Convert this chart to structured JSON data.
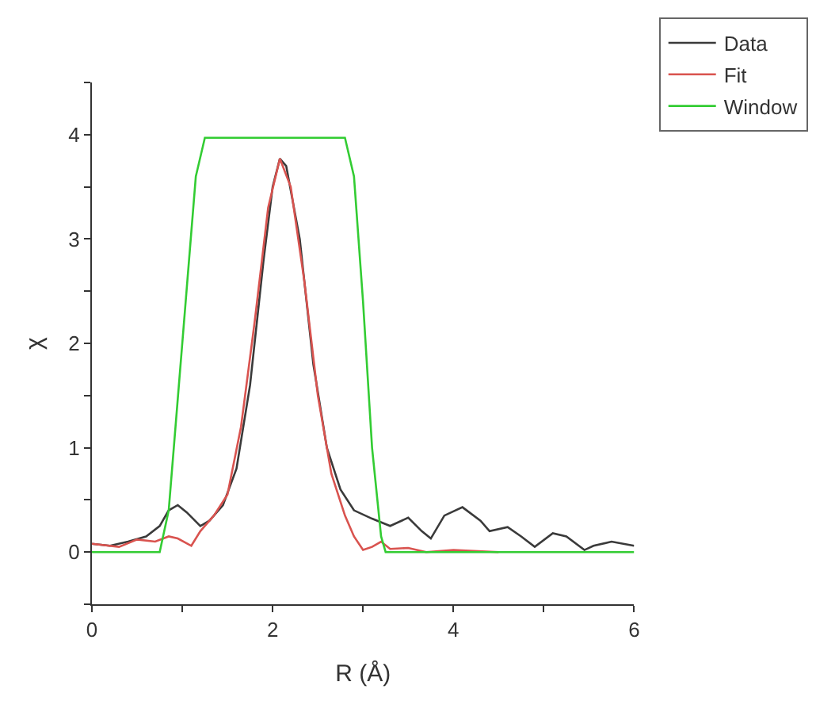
{
  "chart_data": {
    "type": "line",
    "xlabel": "R (Å)",
    "ylabel": "χ",
    "xlim": [
      0,
      6
    ],
    "xticks": [
      0,
      {
        "value": 1,
        "label": null
      },
      2,
      {
        "value": 3,
        "label": null
      },
      4,
      {
        "value": 5,
        "label": null
      },
      6
    ],
    "ylim": [
      -0.5,
      4.5
    ],
    "yticks": [
      {
        "value": -0.5,
        "label": null
      },
      0,
      {
        "value": 0.5,
        "label": null
      },
      1,
      {
        "value": 1.5,
        "label": null
      },
      2,
      {
        "value": 2.5,
        "label": null
      },
      3,
      {
        "value": 3.5,
        "label": null
      },
      4,
      {
        "value": 4.5,
        "label": null
      }
    ],
    "legend": "top right",
    "marker": "none",
    "line_style": "solid",
    "series": [
      {
        "name": "Data",
        "color": "#3a3a3a",
        "x": [
          0,
          0.2,
          0.4,
          0.6,
          0.75,
          0.85,
          0.95,
          1.05,
          1.2,
          1.3,
          1.45,
          1.6,
          1.75,
          1.9,
          2.0,
          2.08,
          2.15,
          2.3,
          2.45,
          2.6,
          2.75,
          2.9,
          3.1,
          3.3,
          3.5,
          3.65,
          3.75,
          3.9,
          4.1,
          4.3,
          4.4,
          4.6,
          4.75,
          4.9,
          5.1,
          5.25,
          5.45,
          5.55,
          5.75,
          6
        ],
        "values": [
          0.08,
          0.06,
          0.1,
          0.15,
          0.25,
          0.4,
          0.45,
          0.38,
          0.25,
          0.3,
          0.45,
          0.8,
          1.6,
          2.8,
          3.5,
          3.77,
          3.7,
          3.0,
          1.8,
          1.0,
          0.6,
          0.4,
          0.32,
          0.25,
          0.33,
          0.2,
          0.13,
          0.35,
          0.43,
          0.3,
          0.2,
          0.24,
          0.15,
          0.05,
          0.18,
          0.15,
          0.02,
          0.06,
          0.1,
          0.06
        ]
      },
      {
        "name": "Fit",
        "color": "#d9534f",
        "x": [
          0,
          0.3,
          0.5,
          0.7,
          0.85,
          0.95,
          1.1,
          1.2,
          1.35,
          1.5,
          1.65,
          1.8,
          1.95,
          2.08,
          2.2,
          2.35,
          2.5,
          2.65,
          2.8,
          2.9,
          3.0,
          3.1,
          3.2,
          3.3,
          3.5,
          3.7,
          4.0,
          4.5
        ],
        "values": [
          0.08,
          0.05,
          0.12,
          0.1,
          0.15,
          0.13,
          0.06,
          0.2,
          0.35,
          0.55,
          1.2,
          2.2,
          3.3,
          3.77,
          3.5,
          2.6,
          1.5,
          0.75,
          0.35,
          0.15,
          0.02,
          0.05,
          0.1,
          0.03,
          0.04,
          0.0,
          0.02,
          0.0
        ]
      },
      {
        "name": "Window",
        "color": "#33cc33",
        "x": [
          0,
          0.75,
          0.85,
          1.0,
          1.15,
          1.25,
          2.8,
          2.9,
          3.0,
          3.1,
          3.2,
          3.25,
          6
        ],
        "values": [
          0,
          0,
          0.4,
          2.0,
          3.6,
          3.97,
          3.97,
          3.6,
          2.4,
          1.0,
          0.15,
          0,
          0
        ]
      }
    ]
  }
}
